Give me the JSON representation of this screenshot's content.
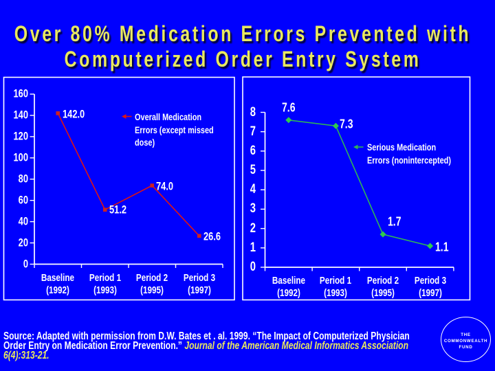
{
  "slide": {
    "background_color": "#0000fe",
    "title": {
      "lines": [
        "Over 80% Medication Errors Prevented with",
        "Computerized Order Entry System"
      ],
      "color": "#e9e95e"
    },
    "source_note": {
      "line1": "Source: Adapted with permission from D.W. Bates et . al. 1999.  “The Impact of Computerized Physician",
      "line2_plain": "Order Entry on Medication Error Prevention.”   ",
      "line2_italic": "Journal of the American Medical Informatics Association",
      "line3_italic": "6(4):313-21.",
      "italic_color": "#e9e95e"
    },
    "logo": {
      "lines": [
        "THE",
        "COMMONWEALTH",
        "FUND"
      ]
    }
  },
  "chart_data": [
    {
      "type": "line",
      "title": "",
      "categories": [
        [
          "Baseline",
          "(1992)"
        ],
        [
          "Period 1",
          "(1993)"
        ],
        [
          "Period 2",
          "(1995)"
        ],
        [
          "Period 3",
          "(1997)"
        ]
      ],
      "series": [
        {
          "name": "Overall Medication Errors (except missed dose)",
          "values": [
            142.0,
            51.2,
            74.0,
            26.6
          ]
        }
      ],
      "point_labels": [
        "142.0",
        "51.2",
        "74.0",
        "26.6"
      ],
      "legend_lines": [
        "Overall Medication",
        "Errors (except missed",
        "dose)"
      ],
      "ylim": [
        0,
        160
      ],
      "yticks": [
        0,
        20,
        40,
        60,
        80,
        100,
        120,
        140,
        160
      ],
      "grid": false,
      "legend_position": "upper-right-inside",
      "color": "#dd1414",
      "marker_color": "#cc2222"
    },
    {
      "type": "line",
      "title": "",
      "categories": [
        [
          "Baseline",
          "(1992)"
        ],
        [
          "Period 1",
          "(1993)"
        ],
        [
          "Period 2",
          "(1995)"
        ],
        [
          "Period 3",
          "(1997)"
        ]
      ],
      "series": [
        {
          "name": "Serious Medication Errors (nonintercepted)",
          "values": [
            7.6,
            7.3,
            1.7,
            1.1
          ]
        }
      ],
      "point_labels": [
        "7.6",
        "7.3",
        "1.7",
        "1.1"
      ],
      "legend_lines": [
        "Serious Medication",
        "Errors (nonintercepted)"
      ],
      "ylim": [
        0,
        8
      ],
      "yticks": [
        0,
        1,
        2,
        3,
        4,
        5,
        6,
        7,
        8
      ],
      "grid": false,
      "legend_position": "right-inside",
      "color": "#2fb457",
      "marker_color": "#2ecb4e"
    }
  ]
}
